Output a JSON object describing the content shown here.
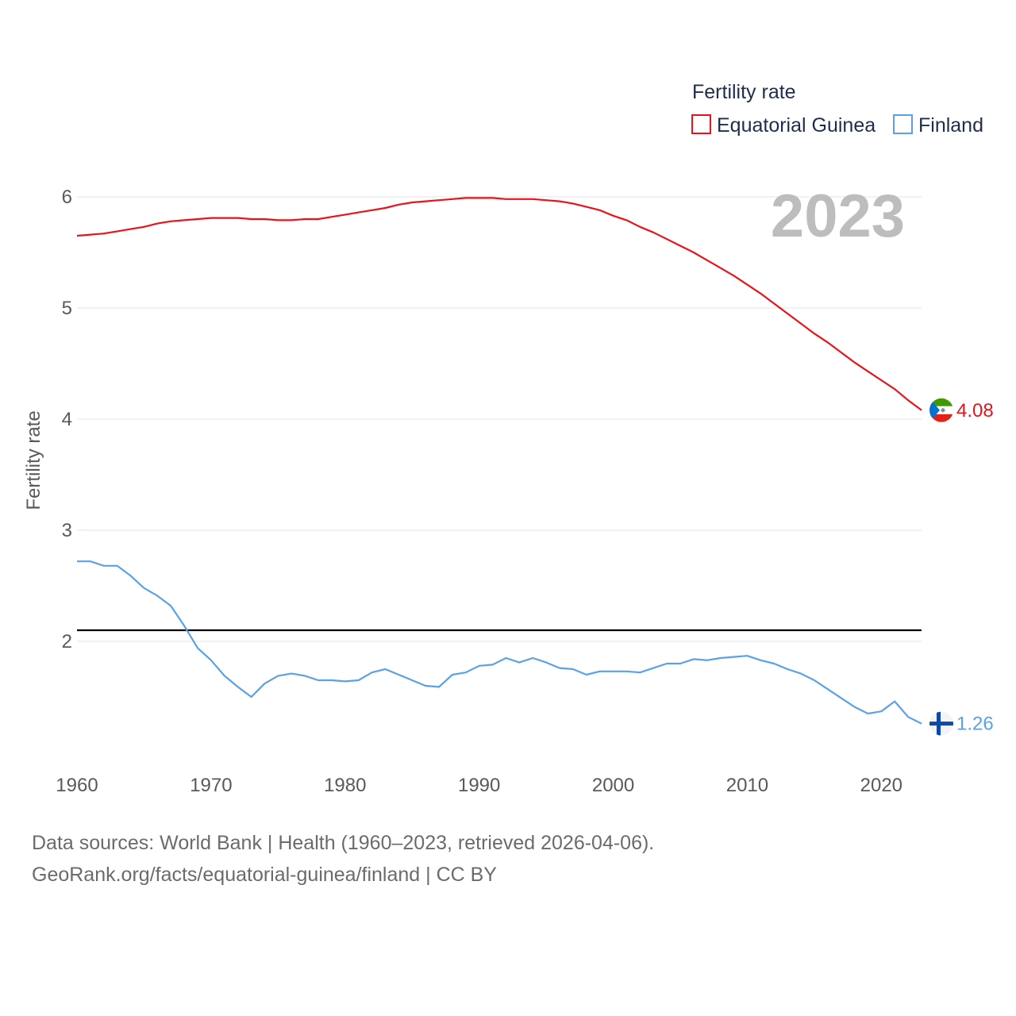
{
  "chart_data": {
    "type": "line",
    "year_label": "2023",
    "ylabel": "Fertility rate",
    "xlabel": "",
    "xlim": [
      1960,
      2023
    ],
    "ylim": [
      1.0,
      6.35
    ],
    "y_ticks": [
      2,
      3,
      4,
      5,
      6
    ],
    "x_ticks": [
      1960,
      1970,
      1980,
      1990,
      2000,
      2010,
      2020
    ],
    "reference_line": {
      "value": 2.1,
      "color": "#000000"
    },
    "legend": {
      "title": "Fertility rate",
      "position": "top-right"
    },
    "series": [
      {
        "name": "Equatorial Guinea",
        "color": "#e8141a",
        "flag": "equatorial-guinea-flag-icon",
        "end_value_label": "4.08",
        "x": [
          1960,
          1961,
          1962,
          1963,
          1964,
          1965,
          1966,
          1967,
          1968,
          1969,
          1970,
          1971,
          1972,
          1973,
          1974,
          1975,
          1976,
          1977,
          1978,
          1979,
          1980,
          1981,
          1982,
          1983,
          1984,
          1985,
          1986,
          1987,
          1988,
          1989,
          1990,
          1991,
          1992,
          1993,
          1994,
          1995,
          1996,
          1997,
          1998,
          1999,
          2000,
          2001,
          2002,
          2003,
          2004,
          2005,
          2006,
          2007,
          2008,
          2009,
          2010,
          2011,
          2012,
          2013,
          2014,
          2015,
          2016,
          2017,
          2018,
          2019,
          2020,
          2021,
          2022,
          2023
        ],
        "values": [
          5.65,
          5.66,
          5.67,
          5.69,
          5.71,
          5.73,
          5.76,
          5.78,
          5.79,
          5.8,
          5.81,
          5.81,
          5.81,
          5.8,
          5.8,
          5.79,
          5.79,
          5.8,
          5.8,
          5.82,
          5.84,
          5.86,
          5.88,
          5.9,
          5.93,
          5.95,
          5.96,
          5.97,
          5.98,
          5.99,
          5.99,
          5.99,
          5.98,
          5.98,
          5.98,
          5.97,
          5.96,
          5.94,
          5.91,
          5.88,
          5.83,
          5.79,
          5.73,
          5.68,
          5.62,
          5.56,
          5.5,
          5.43,
          5.36,
          5.29,
          5.21,
          5.13,
          5.04,
          4.95,
          4.86,
          4.77,
          4.69,
          4.6,
          4.51,
          4.43,
          4.35,
          4.27,
          4.17,
          4.08
        ]
      },
      {
        "name": "Finland",
        "color": "#5aa2e6",
        "flag": "finland-flag-icon",
        "end_value_label": "1.26",
        "x": [
          1960,
          1961,
          1962,
          1963,
          1964,
          1965,
          1966,
          1967,
          1968,
          1969,
          1970,
          1971,
          1972,
          1973,
          1974,
          1975,
          1976,
          1977,
          1978,
          1979,
          1980,
          1981,
          1982,
          1983,
          1984,
          1985,
          1986,
          1987,
          1988,
          1989,
          1990,
          1991,
          1992,
          1993,
          1994,
          1995,
          1996,
          1997,
          1998,
          1999,
          2000,
          2001,
          2002,
          2003,
          2004,
          2005,
          2006,
          2007,
          2008,
          2009,
          2010,
          2011,
          2012,
          2013,
          2014,
          2015,
          2016,
          2017,
          2018,
          2019,
          2020,
          2021,
          2022,
          2023
        ],
        "values": [
          2.72,
          2.72,
          2.68,
          2.68,
          2.59,
          2.48,
          2.41,
          2.32,
          2.14,
          1.94,
          1.83,
          1.69,
          1.59,
          1.5,
          1.62,
          1.69,
          1.71,
          1.69,
          1.65,
          1.65,
          1.64,
          1.65,
          1.72,
          1.75,
          1.7,
          1.65,
          1.6,
          1.59,
          1.7,
          1.72,
          1.78,
          1.79,
          1.85,
          1.81,
          1.85,
          1.81,
          1.76,
          1.75,
          1.7,
          1.73,
          1.73,
          1.73,
          1.72,
          1.76,
          1.8,
          1.8,
          1.84,
          1.83,
          1.85,
          1.86,
          1.87,
          1.83,
          1.8,
          1.75,
          1.71,
          1.65,
          1.57,
          1.49,
          1.41,
          1.35,
          1.37,
          1.46,
          1.32,
          1.26
        ]
      }
    ]
  },
  "footer": {
    "line1": "Data sources: World Bank | Health (1960–2023, retrieved 2026-04-06).",
    "line2": "GeoRank.org/facts/equatorial-guinea/finland | CC BY"
  }
}
